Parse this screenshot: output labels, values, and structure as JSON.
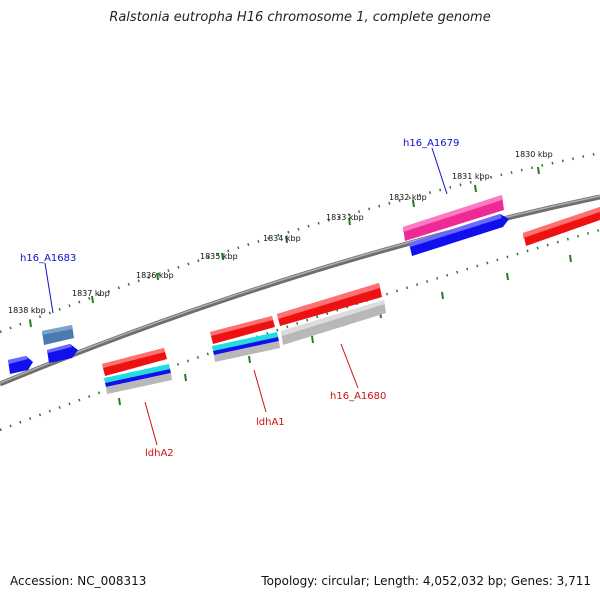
{
  "title": "Ralstonia eutropha H16 chromosome 1, complete genome",
  "footer": {
    "accession": "Accession: NC_008313",
    "summary": "Topology: circular; Length: 4,052,032 bp; Genes: 3,711"
  },
  "kbp_labels": {
    "k1830": "1830 kbp",
    "k1831": "1831 kbp",
    "k1832": "1832 kbp",
    "k1833": "1833 kbp",
    "k1834": "1834 kbp",
    "k1835": "1835 kbp",
    "k1836": "1836 kbp",
    "k1837": "1837 kbp",
    "k1838": "1838 kbp"
  },
  "gene_labels": {
    "h16_A1679": "h16_A1679",
    "h16_A1683": "h16_A1683",
    "h16_A1680": "h16_A1680",
    "ldhA1": "ldhA1",
    "ldhA2": "ldhA2"
  },
  "colors": {
    "backbone": "#777777",
    "ruler": "#2a7a2a",
    "cds_red": "#ee1111",
    "cds_blue": "#1010ee",
    "cds_magenta": "#ee2a96",
    "cds_steelblue": "#4a7ab0",
    "cds_cyan": "#22dddd",
    "cds_grey": "#b8b8b8",
    "label_blue": "#1010cc",
    "label_red": "#cc1111"
  }
}
